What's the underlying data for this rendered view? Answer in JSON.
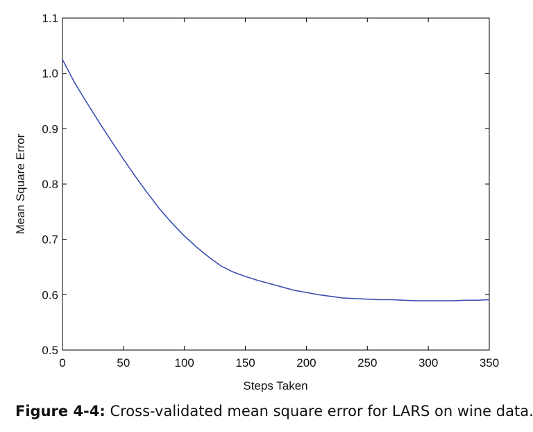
{
  "chart_data": {
    "type": "line",
    "title": "",
    "xlabel": "Steps Taken",
    "ylabel": "Mean Square Error",
    "xlim": [
      0,
      350
    ],
    "ylim": [
      0.5,
      1.1
    ],
    "xticks": [
      0,
      50,
      100,
      150,
      200,
      250,
      300,
      350
    ],
    "yticks": [
      0.5,
      0.6,
      0.7,
      0.8,
      0.9,
      1.0,
      1.1
    ],
    "xtick_labels": [
      "0",
      "50",
      "100",
      "150",
      "200",
      "250",
      "300",
      "350"
    ],
    "ytick_labels": [
      "0.5",
      "0.6",
      "0.7",
      "0.8",
      "0.9",
      "1.0",
      "1.1"
    ],
    "grid": false,
    "legend": "none",
    "series": [
      {
        "color": "#3a4fb0",
        "x": [
          0,
          10,
          20,
          30,
          40,
          50,
          60,
          70,
          80,
          90,
          100,
          110,
          120,
          130,
          140,
          150,
          160,
          170,
          180,
          190,
          200,
          210,
          220,
          230,
          240,
          250,
          260,
          270,
          280,
          290,
          300,
          310,
          320,
          330,
          340,
          350
        ],
        "y": [
          1.025,
          0.983,
          0.947,
          0.912,
          0.878,
          0.845,
          0.813,
          0.783,
          0.754,
          0.729,
          0.706,
          0.686,
          0.668,
          0.652,
          0.641,
          0.633,
          0.626,
          0.62,
          0.614,
          0.608,
          0.604,
          0.6,
          0.597,
          0.594,
          0.593,
          0.592,
          0.591,
          0.591,
          0.59,
          0.589,
          0.589,
          0.589,
          0.589,
          0.59,
          0.59,
          0.591
        ]
      }
    ]
  },
  "caption": {
    "lead": "Figure 4-4:",
    "text": " Cross-validated mean square error for LARS on wine data."
  }
}
